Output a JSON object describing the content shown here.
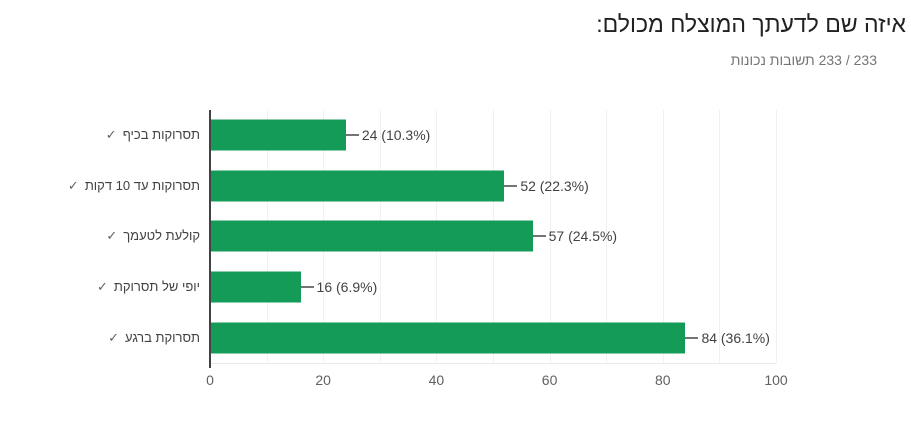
{
  "chart_data": {
    "type": "bar",
    "orientation": "horizontal",
    "title": "איזה שם לדעתך המוצלח מכולם:",
    "subtitle": "233 / 233 תשובות נכונות",
    "categories": [
      "תסרוקות בכיף",
      "תסרוקות עד 10 דקות",
      "קולעת לטעמך",
      "יופי של תסרוקת",
      "תסרוקת ברגע"
    ],
    "correct_mark": "✓",
    "values": [
      24,
      52,
      57,
      16,
      84
    ],
    "percents": [
      "10.3%",
      "22.3%",
      "24.5%",
      "6.9%",
      "36.1%"
    ],
    "xlim": [
      0,
      100
    ],
    "x_ticks": [
      "0",
      "20",
      "40",
      "60",
      "80",
      "100"
    ],
    "grid_step": 10,
    "grid": true,
    "legend": "none",
    "colors": {
      "bar": "#149b58",
      "grid": "#f1f1f1",
      "axis": "#424242",
      "baseline": "#e8e8e8",
      "connector": "#757575",
      "title_text": "#212121",
      "subtitle_text": "#757575",
      "label_text": "#424242",
      "tick_text": "#616161"
    }
  }
}
